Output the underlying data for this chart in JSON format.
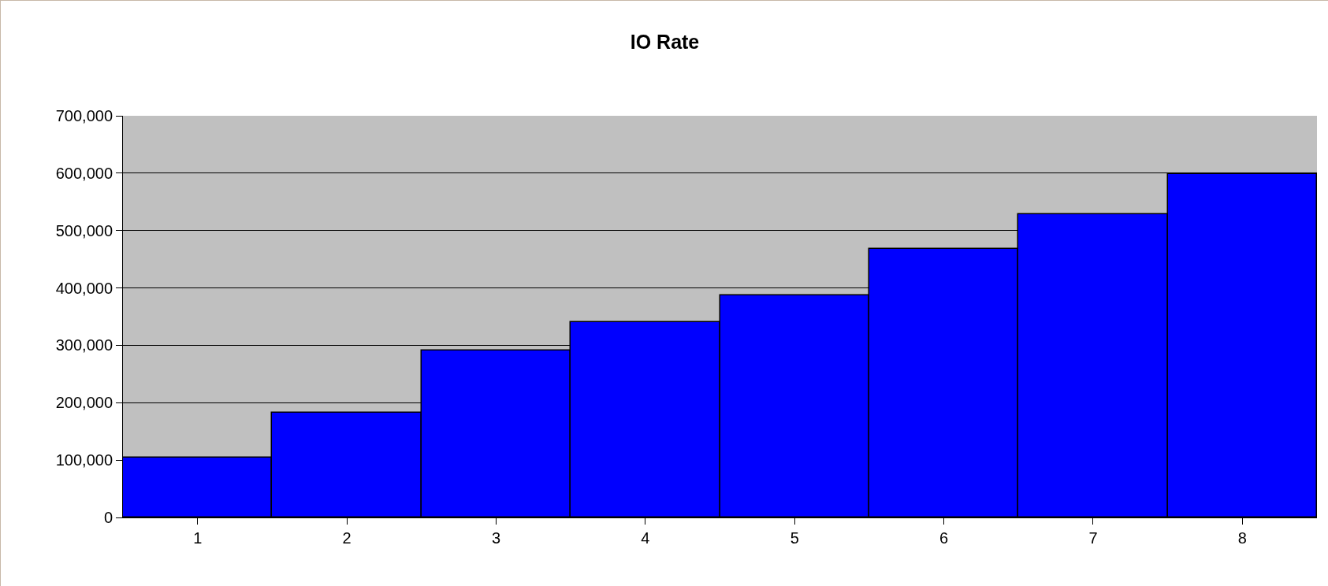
{
  "chart_data": {
    "type": "bar",
    "title": "IO Rate",
    "categories": [
      "1",
      "2",
      "3",
      "4",
      "5",
      "6",
      "7",
      "8"
    ],
    "values": [
      104000,
      182000,
      291000,
      340000,
      387000,
      468000,
      529000,
      598000
    ],
    "color": "#0000ff",
    "ylim": [
      0,
      700000
    ],
    "yticks": [
      {
        "value": 0,
        "label": "0"
      },
      {
        "value": 100000,
        "label": "100,000"
      },
      {
        "value": 200000,
        "label": "200,000"
      },
      {
        "value": 300000,
        "label": "300,000"
      },
      {
        "value": 400000,
        "label": "400,000"
      },
      {
        "value": 500000,
        "label": "500,000"
      },
      {
        "value": 600000,
        "label": "600,000"
      },
      {
        "value": 700000,
        "label": "700,000"
      }
    ],
    "grid": "y"
  }
}
